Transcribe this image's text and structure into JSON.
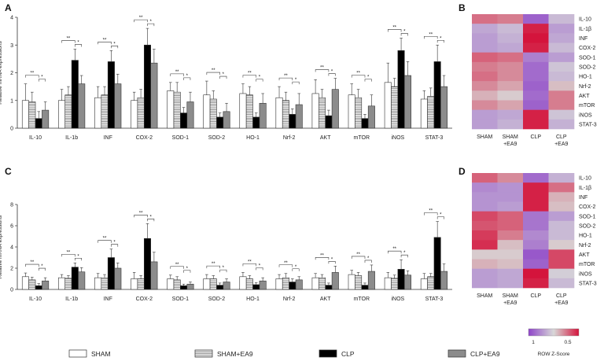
{
  "panels": {
    "A": "A",
    "B": "B",
    "C": "C",
    "D": "D"
  },
  "chart_data": [
    {
      "type": "bar",
      "panel": "A",
      "ylabel": "Relative mRNA expressions",
      "ylim": [
        0,
        4
      ],
      "yticks": [
        0,
        1,
        2,
        3,
        4
      ],
      "categories": [
        "IL-10",
        "IL-1b",
        "INF",
        "COX-2",
        "SOD-1",
        "SOD-2",
        "HO-1",
        "Nrf-2",
        "AKT",
        "mTOR",
        "iNOS",
        "STAT-3"
      ],
      "series": [
        {
          "name": "SHAM",
          "fill": "white",
          "values": [
            1.0,
            1.0,
            1.1,
            1.0,
            1.35,
            1.2,
            1.25,
            1.1,
            1.25,
            1.2,
            1.65,
            1.05
          ],
          "errors": [
            0.6,
            0.4,
            0.4,
            0.3,
            0.3,
            0.5,
            0.35,
            0.4,
            0.5,
            0.4,
            0.7,
            0.3
          ]
        },
        {
          "name": "SHAM+EA9",
          "fill": "hatch",
          "values": [
            0.95,
            1.2,
            1.2,
            1.1,
            1.3,
            1.05,
            1.2,
            1.0,
            1.1,
            1.1,
            1.5,
            1.15
          ],
          "errors": [
            0.35,
            0.3,
            0.3,
            0.3,
            0.35,
            0.3,
            0.3,
            0.3,
            0.3,
            0.3,
            0.3,
            0.3
          ]
        },
        {
          "name": "CLP",
          "fill": "black",
          "values": [
            0.35,
            2.45,
            2.4,
            3.0,
            0.55,
            0.4,
            0.4,
            0.5,
            0.45,
            0.35,
            2.8,
            2.4
          ],
          "errors": [
            0.25,
            0.4,
            0.4,
            0.6,
            0.2,
            0.15,
            0.15,
            0.2,
            0.2,
            0.15,
            0.45,
            0.6
          ]
        },
        {
          "name": "CLP+EA9",
          "fill": "gray",
          "values": [
            0.65,
            1.6,
            1.6,
            2.35,
            0.95,
            0.6,
            0.9,
            0.85,
            1.4,
            0.8,
            1.9,
            1.5
          ],
          "errors": [
            0.3,
            0.3,
            0.35,
            0.5,
            0.35,
            0.3,
            0.35,
            0.4,
            0.4,
            0.4,
            0.5,
            0.4
          ]
        }
      ]
    },
    {
      "type": "bar",
      "panel": "C",
      "ylabel": "Relative mRNA expressions",
      "ylim": [
        0,
        8
      ],
      "yticks": [
        0,
        2,
        4,
        6,
        8
      ],
      "categories": [
        "IL-10",
        "IL-1b",
        "INF",
        "COX-2",
        "SOD-1",
        "SOD-2",
        "HO-1",
        "Nrf-2",
        "AKT",
        "mTOR",
        "iNOS",
        "STAT-3"
      ],
      "series": [
        {
          "name": "SHAM",
          "fill": "white",
          "values": [
            1.2,
            1.1,
            1.1,
            1.0,
            1.0,
            1.0,
            1.2,
            1.0,
            1.1,
            1.4,
            1.1,
            1.0
          ],
          "errors": [
            0.35,
            0.3,
            0.4,
            0.6,
            0.35,
            0.4,
            0.4,
            0.4,
            0.4,
            0.4,
            0.5,
            0.5
          ]
        },
        {
          "name": "SHAM+EA9",
          "fill": "hatch",
          "values": [
            0.9,
            1.05,
            1.1,
            1.0,
            0.9,
            1.0,
            1.0,
            1.1,
            1.1,
            1.3,
            1.05,
            1.2
          ],
          "errors": [
            0.25,
            0.25,
            0.3,
            0.3,
            0.3,
            0.3,
            0.3,
            0.4,
            0.3,
            0.3,
            0.3,
            0.3
          ]
        },
        {
          "name": "CLP",
          "fill": "black",
          "values": [
            0.35,
            2.1,
            3.0,
            4.8,
            0.35,
            0.4,
            0.45,
            0.7,
            0.4,
            0.4,
            1.9,
            4.9
          ],
          "errors": [
            0.2,
            0.4,
            0.8,
            1.4,
            0.15,
            0.2,
            0.2,
            0.3,
            0.2,
            0.2,
            0.9,
            1.5
          ]
        },
        {
          "name": "CLP+EA9",
          "fill": "gray",
          "values": [
            0.8,
            1.65,
            2.0,
            2.6,
            0.5,
            0.7,
            0.8,
            0.9,
            1.6,
            1.7,
            1.35,
            1.7
          ],
          "errors": [
            0.3,
            0.4,
            0.5,
            0.9,
            0.2,
            0.3,
            0.3,
            0.3,
            0.6,
            0.6,
            0.4,
            0.7
          ]
        }
      ]
    },
    {
      "type": "heatmap",
      "panel": "B",
      "columns": [
        "SHAM",
        "SHAM\n+EA9",
        "CLP",
        "CLP\n+EA9"
      ],
      "rows": [
        "IL-10",
        "IL-1β",
        "INF",
        "COX-2",
        "SOD-1",
        "SOD-2",
        "HO-1",
        "Nrf-2",
        "AKT",
        "mTOR",
        "iNOS",
        "STAT-3"
      ],
      "values": [
        [
          0.8,
          0.7,
          -1.2,
          -0.3
        ],
        [
          -0.5,
          -0.3,
          1.4,
          -0.6
        ],
        [
          -0.6,
          -0.4,
          1.5,
          -0.5
        ],
        [
          -0.6,
          -0.5,
          1.4,
          -0.3
        ],
        [
          0.9,
          0.8,
          -0.9,
          -0.6
        ],
        [
          0.7,
          0.6,
          -1.1,
          -0.2
        ],
        [
          0.8,
          0.6,
          -1.1,
          -0.3
        ],
        [
          0.6,
          0.4,
          -1.2,
          0.2
        ],
        [
          0.3,
          0.1,
          -1.1,
          0.7
        ],
        [
          0.6,
          0.4,
          -1.2,
          0.7
        ],
        [
          -0.6,
          -0.5,
          1.4,
          -0.2
        ],
        [
          -0.6,
          -0.4,
          1.4,
          -0.4
        ]
      ]
    },
    {
      "type": "heatmap",
      "panel": "D",
      "columns": [
        "SHAM",
        "SHAM\n+EA9",
        "CLP",
        "CLP\n+EA9"
      ],
      "rows": [
        "IL-10",
        "IL-1β",
        "INF",
        "COX-2",
        "SOD-1",
        "SOD-2",
        "HO-1",
        "Nrf-2",
        "AKT",
        "mTOR",
        "iNOS",
        "STAT-3"
      ],
      "values": [
        [
          0.9,
          0.6,
          -1.1,
          -0.4
        ],
        [
          -0.8,
          -0.7,
          1.4,
          0.8
        ],
        [
          -0.7,
          -0.7,
          1.4,
          0.3
        ],
        [
          -0.7,
          -0.6,
          1.4,
          0.2
        ],
        [
          1.1,
          0.9,
          -1.0,
          -0.6
        ],
        [
          1.0,
          0.9,
          -1.0,
          -0.3
        ],
        [
          1.2,
          0.7,
          -0.8,
          -0.3
        ],
        [
          1.3,
          0.2,
          -0.9,
          0.1
        ],
        [
          0.1,
          0.1,
          -1.3,
          1.1
        ],
        [
          0.3,
          0.2,
          -1.2,
          1.1
        ],
        [
          -0.6,
          -0.5,
          1.5,
          -0.1
        ],
        [
          -0.6,
          -0.5,
          1.4,
          -0.3
        ]
      ]
    }
  ],
  "legend": {
    "items": [
      {
        "name": "SHAM",
        "fill": "white"
      },
      {
        "name": "SHAM+EA9",
        "fill": "hatch"
      },
      {
        "name": "CLP",
        "fill": "black"
      },
      {
        "name": "CLP+EA9",
        "fill": "gray"
      }
    ]
  },
  "color_scale": {
    "low_color": "#8E44C8",
    "mid_color": "#D8D8D8",
    "high_color": "#D4143C",
    "tick_left": "1",
    "tick_right": "0.5",
    "label": "ROW Z-Score"
  }
}
